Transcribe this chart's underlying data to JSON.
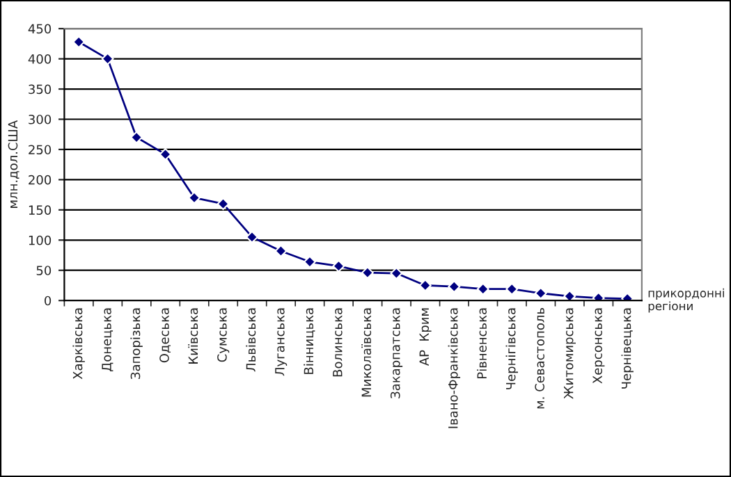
{
  "chart_data": {
    "type": "line",
    "xlabel": "прикордонні\nрегіони",
    "ylabel": "млн.дол.США",
    "categories": [
      "Харківська",
      "Донецька",
      "Запорізька",
      "Одеська",
      "Київська",
      "Сумська",
      "Львівська",
      "Луганська",
      "Вінницька",
      "Волинська",
      "Миколаївська",
      "Закарпатська",
      "АР  Крим",
      "Івано-Франківська",
      "Рівненська",
      "Чернігівська",
      "м. Севастополь",
      "Житомирська",
      "Херсонська",
      "Чернівецька"
    ],
    "series": [
      {
        "color": "#000080",
        "values": [
          428,
          400,
          270,
          242,
          170,
          160,
          105,
          82,
          64,
          57,
          46,
          45,
          25,
          23,
          19,
          19,
          12,
          7,
          4,
          3
        ]
      }
    ],
    "ylim": [
      0,
      450
    ],
    "yticks": [
      0,
      50,
      100,
      150,
      200,
      250,
      300,
      350,
      400,
      450
    ],
    "grid": "y",
    "marker": "diamond",
    "line_style": "solid"
  }
}
